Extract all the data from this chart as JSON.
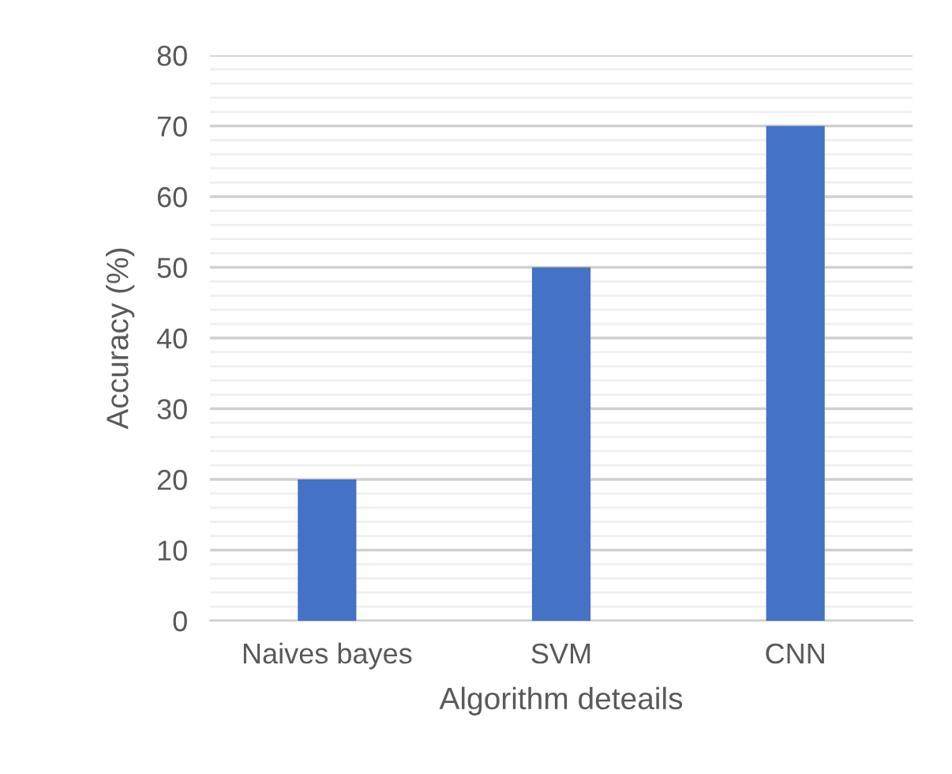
{
  "chart_data": {
    "type": "bar",
    "xlabel": "Algorithm deteails",
    "ylabel": "Accuracy (%)",
    "categories": [
      "Naives bayes",
      "SVM",
      "CNN"
    ],
    "values": [
      20,
      50,
      70
    ],
    "color": "#4472c4",
    "ylim": [
      0,
      80
    ],
    "yticks": [
      0,
      10,
      20,
      30,
      40,
      50,
      60,
      70,
      80
    ],
    "grid": "y"
  }
}
